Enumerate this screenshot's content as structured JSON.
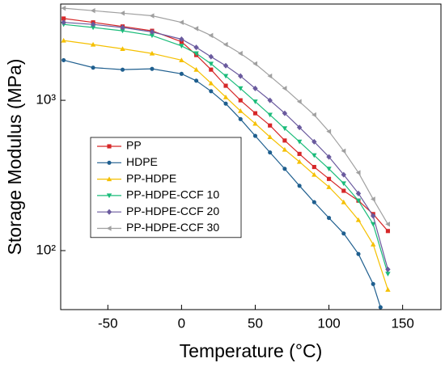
{
  "chart_data": {
    "type": "line",
    "x_label": "Temperature (°C)",
    "y_label": "Storage Modulus (MPa)",
    "log_y": true,
    "legend": "center-left",
    "xlim": [
      -82,
      176
    ],
    "xticks": [
      -50,
      0,
      50,
      100,
      150
    ],
    "ylim": [
      40.5,
      4370
    ],
    "yticks": [
      {
        "value": 100,
        "label": "10²"
      },
      {
        "value": 1000,
        "label": "10³"
      }
    ],
    "series": [
      {
        "name": "PP",
        "color": "#d62728",
        "marker": "square",
        "x": [
          -80,
          -60,
          -40,
          -20,
          0,
          10,
          20,
          30,
          40,
          50,
          60,
          70,
          80,
          90,
          100,
          110,
          120,
          130,
          140
        ],
        "values": [
          3500,
          3300,
          3100,
          2900,
          2450,
          2000,
          1600,
          1250,
          1000,
          820,
          680,
          540,
          440,
          360,
          300,
          250,
          215,
          175,
          135
        ]
      },
      {
        "name": "HDPE",
        "color": "#1f5f8f",
        "marker": "circle",
        "x": [
          -80,
          -60,
          -40,
          -20,
          0,
          10,
          20,
          30,
          40,
          50,
          60,
          70,
          80,
          90,
          100,
          110,
          120,
          130,
          135
        ],
        "values": [
          1850,
          1650,
          1600,
          1620,
          1500,
          1350,
          1150,
          950,
          750,
          580,
          450,
          350,
          270,
          210,
          165,
          130,
          95,
          60,
          42
        ]
      },
      {
        "name": "PP-HDPE",
        "color": "#f5c000",
        "marker": "triangle-up",
        "x": [
          -80,
          -60,
          -40,
          -20,
          0,
          10,
          20,
          30,
          40,
          50,
          60,
          70,
          80,
          90,
          100,
          110,
          120,
          130,
          140
        ],
        "values": [
          2500,
          2350,
          2200,
          2050,
          1850,
          1600,
          1300,
          1050,
          850,
          700,
          570,
          470,
          390,
          320,
          265,
          210,
          160,
          110,
          55
        ]
      },
      {
        "name": "PP-HDPE-CCF 10",
        "color": "#1abc7a",
        "marker": "triangle-down",
        "x": [
          -80,
          -60,
          -40,
          -20,
          0,
          10,
          20,
          30,
          40,
          50,
          60,
          70,
          80,
          90,
          100,
          110,
          120,
          130,
          140
        ],
        "values": [
          3200,
          3050,
          2900,
          2700,
          2300,
          2050,
          1750,
          1450,
          1200,
          980,
          800,
          650,
          530,
          430,
          350,
          280,
          215,
          150,
          70
        ]
      },
      {
        "name": "PP-HDPE-CCF 20",
        "color": "#6a5a9e",
        "marker": "diamond",
        "x": [
          -80,
          -60,
          -40,
          -20,
          0,
          10,
          20,
          30,
          40,
          50,
          60,
          70,
          80,
          90,
          100,
          110,
          120,
          130,
          140
        ],
        "values": [
          3300,
          3200,
          3050,
          2850,
          2550,
          2250,
          1950,
          1700,
          1450,
          1200,
          1000,
          820,
          660,
          530,
          420,
          320,
          240,
          170,
          75
        ]
      },
      {
        "name": "PP-HDPE-CCF 30",
        "color": "#a0a0a0",
        "marker": "triangle-left",
        "x": [
          -80,
          -60,
          -40,
          -20,
          0,
          10,
          20,
          30,
          40,
          50,
          60,
          70,
          80,
          90,
          100,
          110,
          120,
          130,
          140
        ],
        "values": [
          4100,
          3950,
          3800,
          3650,
          3300,
          3000,
          2700,
          2350,
          2050,
          1750,
          1450,
          1200,
          980,
          800,
          620,
          460,
          330,
          220,
          150
        ]
      }
    ]
  }
}
